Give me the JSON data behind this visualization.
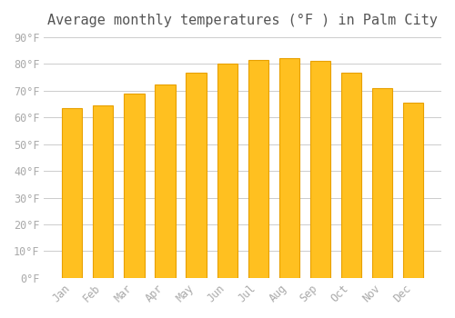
{
  "title": "Average monthly temperatures (°F ) in Palm City",
  "months": [
    "Jan",
    "Feb",
    "Mar",
    "Apr",
    "May",
    "Jun",
    "Jul",
    "Aug",
    "Sep",
    "Oct",
    "Nov",
    "Dec"
  ],
  "values": [
    63.3,
    64.5,
    69.0,
    72.2,
    76.6,
    80.1,
    81.5,
    82.0,
    81.0,
    76.6,
    71.0,
    65.6
  ],
  "bar_color": "#FFC020",
  "bar_edge_color": "#E8A000",
  "background_color": "#FFFFFF",
  "grid_color": "#CCCCCC",
  "title_color": "#555555",
  "tick_color": "#AAAAAA",
  "ylim": [
    0,
    90
  ],
  "ytick_step": 10,
  "title_fontsize": 11,
  "tick_fontsize": 8.5,
  "font_family": "monospace"
}
